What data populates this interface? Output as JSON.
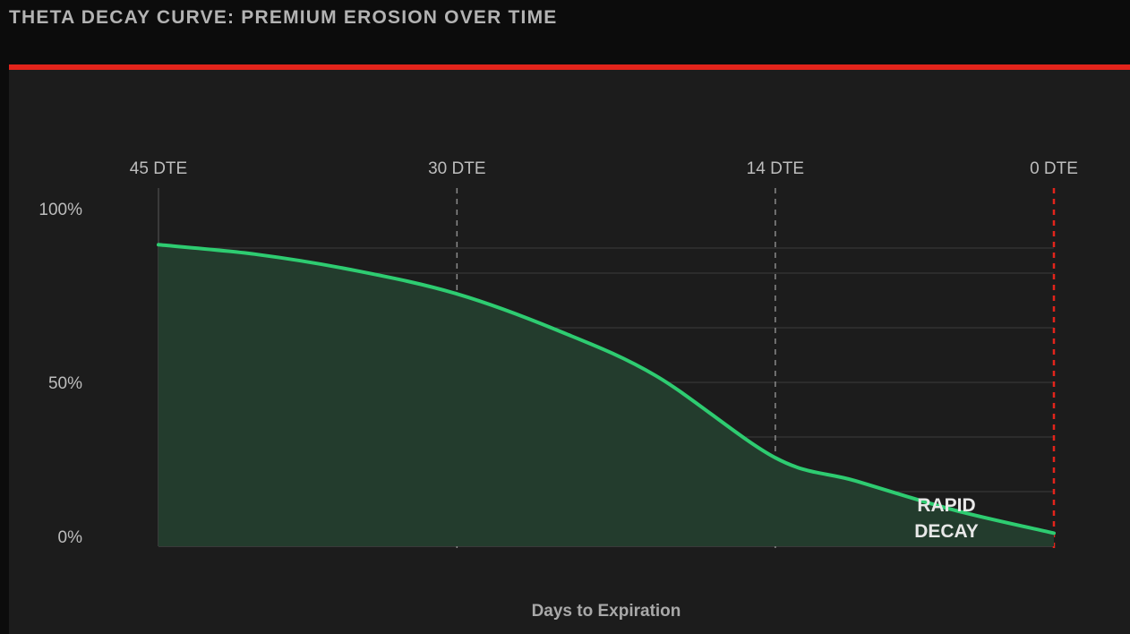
{
  "page": {
    "title": "THETA DECAY CURVE: PREMIUM EROSION OVER TIME"
  },
  "colors": {
    "accent_bar": "#e3241b",
    "curve": "#2ecc71",
    "fill": "#233c2d",
    "expiration_line": "#e3241b",
    "panel_background": "#1c1c1c"
  },
  "chart_data": {
    "type": "area",
    "xlabel": "Days to Expiration",
    "ylabel": "",
    "x_axis_position": "top",
    "x_reversed": true,
    "xlim": [
      45,
      0
    ],
    "ylim": [
      0,
      100
    ],
    "x_ticks": [
      {
        "value": 45,
        "label": "45 DTE"
      },
      {
        "value": 30,
        "label": "30 DTE"
      },
      {
        "value": 14,
        "label": "14 DTE"
      },
      {
        "value": 0,
        "label": "0 DTE"
      }
    ],
    "y_ticks": [
      {
        "value": 100,
        "label": "100%"
      },
      {
        "value": 50,
        "label": "50%"
      },
      {
        "value": 0,
        "label": "0%"
      }
    ],
    "grid": true,
    "series": [
      {
        "x": [
          45,
          40,
          35,
          30,
          25,
          20,
          14,
          10,
          5,
          0
        ],
        "y": [
          92,
          89,
          84,
          77,
          66,
          52,
          27,
          20,
          11,
          4
        ]
      }
    ],
    "annotations": [
      {
        "lines": [
          "RAPID",
          "DECAY"
        ],
        "x": 3,
        "y": 6
      }
    ]
  }
}
